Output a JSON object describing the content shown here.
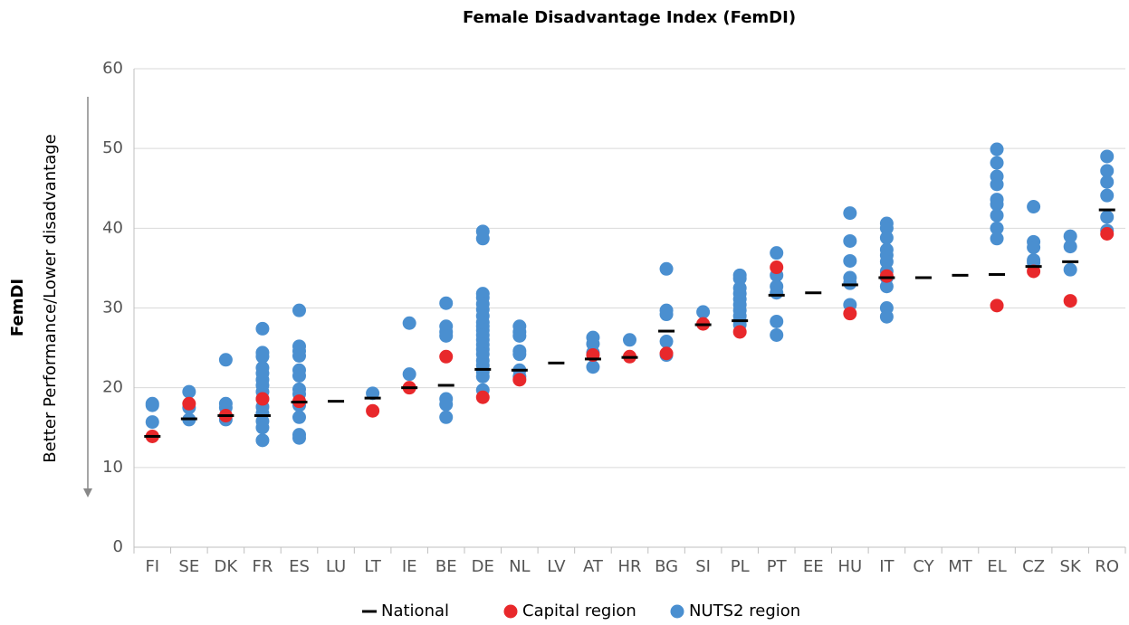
{
  "chart_data": {
    "type": "dot",
    "title": "Female Disadvantage Index (FemDI)",
    "ylabel": "FemDI",
    "ylabel_note": "Better Performance/Lower disadvantage",
    "categories": [
      "FI",
      "SE",
      "DK",
      "FR",
      "ES",
      "LU",
      "LT",
      "IE",
      "BE",
      "DE",
      "NL",
      "LV",
      "AT",
      "HR",
      "BG",
      "SI",
      "PL",
      "PT",
      "EE",
      "HU",
      "IT",
      "CY",
      "MT",
      "EL",
      "CZ",
      "SK",
      "RO"
    ],
    "series": [
      {
        "name": "National",
        "color": "#000000",
        "marker": "dash",
        "values": [
          13.9,
          16.1,
          16.5,
          16.5,
          18.2,
          18.3,
          18.7,
          20,
          20.3,
          22.3,
          22.2,
          23.1,
          23.6,
          23.8,
          27.1,
          27.9,
          28.4,
          31.6,
          31.9,
          32.9,
          33.8,
          33.8,
          34.1,
          34.2,
          35.2,
          35.8,
          42.3
        ]
      },
      {
        "name": "NUTS2 region",
        "color": "#4a8fd0",
        "marker": "circle",
        "values": [
          [
            18,
            17.8,
            15.7
          ],
          [
            19.5,
            17.5,
            16
          ],
          [
            23.5,
            18,
            17.5,
            16
          ],
          [
            27.4,
            24.4,
            23.9,
            22.5,
            21.8,
            21,
            20.3,
            19.5,
            18.6,
            17.6,
            16.8,
            15.8,
            15,
            13.4
          ],
          [
            29.7,
            25.2,
            24.6,
            24,
            22.2,
            21.5,
            19.8,
            19.2,
            17.8,
            16.3,
            14.1,
            13.7
          ],
          [],
          [
            19.3
          ],
          [
            28.1,
            21.7
          ],
          [
            30.6,
            27.7,
            27,
            26.5,
            18.6,
            17.9,
            16.3
          ],
          [
            39.6,
            38.7,
            31.8,
            31.3,
            30.5,
            29.8,
            29,
            28.2,
            27.7,
            27.2,
            26.6,
            26,
            25.4,
            24.8,
            24.2,
            23.4,
            22.8,
            22,
            21.4,
            19.7
          ],
          [
            27.7,
            27,
            26.5,
            24.6,
            24.2,
            22.2,
            21.4
          ],
          [],
          [
            26.3,
            25.5,
            24.4,
            22.6
          ],
          [
            26
          ],
          [
            34.9,
            29.7,
            29.2,
            25.8,
            24.1
          ],
          [
            29.5
          ],
          [
            34.1,
            33.7,
            32.5,
            31.8,
            31.1,
            30.4,
            29.7,
            29,
            28.4,
            27.9
          ],
          [
            36.9,
            34.1,
            32.7,
            31.9,
            28.3,
            26.6
          ],
          [],
          [
            41.9,
            38.4,
            35.9,
            33.8,
            33.1,
            30.4
          ],
          [
            40.6,
            40,
            38.8,
            37.3,
            36.6,
            35.8,
            34.6,
            33.8,
            32.7,
            30,
            28.9
          ],
          [],
          [],
          [
            49.9,
            48.2,
            46.5,
            45.5,
            43.6,
            43,
            41.6,
            40,
            38.7
          ],
          [
            42.7,
            38.3,
            37.6,
            36,
            35.7
          ],
          [
            39,
            37.7,
            34.8
          ],
          [
            49,
            47.2,
            45.8,
            44.1,
            41.4,
            39.7
          ]
        ]
      },
      {
        "name": "Capital region",
        "color": "#e8282b",
        "marker": "circle",
        "values": [
          13.9,
          18,
          16.5,
          18.6,
          18.3,
          null,
          17.1,
          20,
          23.9,
          18.8,
          21,
          null,
          24.1,
          23.9,
          24.3,
          28,
          27,
          35.1,
          null,
          29.3,
          34,
          null,
          null,
          30.3,
          34.6,
          30.9,
          39.3
        ]
      }
    ],
    "legend_order": [
      0,
      2,
      1
    ],
    "ylim": [
      0,
      60
    ],
    "yticks": [
      0,
      10,
      20,
      30,
      40,
      50,
      60
    ],
    "grid": true,
    "legend": "bottom"
  }
}
